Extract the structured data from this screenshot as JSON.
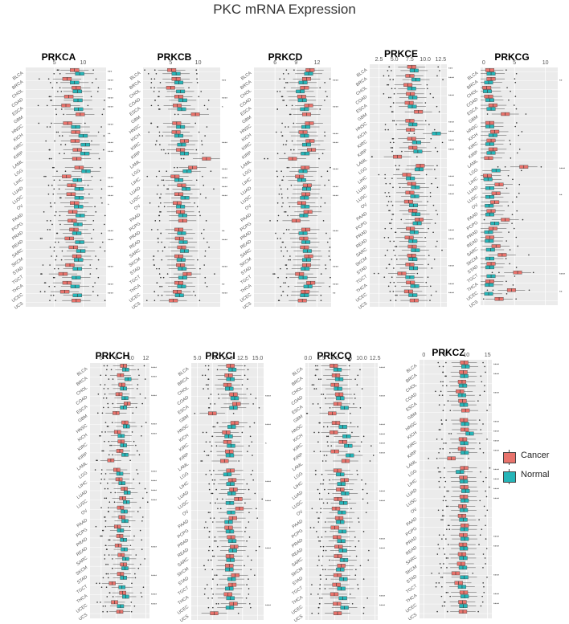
{
  "title": "PKC mRNA Expression",
  "colors": {
    "cancer": "#E8736C",
    "normal": "#26B5B8",
    "panel_bg": "#EBEBEB",
    "grid": "#FFFFFF"
  },
  "legend": {
    "cancer": "Cancer",
    "normal": "Normal"
  },
  "chart_data": [
    {
      "type": "box",
      "title": "PRKCA",
      "ticks": [
        {
          "v": 5,
          "label": "5"
        },
        {
          "v": 10,
          "label": "10"
        }
      ],
      "range": [
        0,
        14
      ],
      "categories": [
        "BLCA",
        "BRCA",
        "CHOL",
        "COAD",
        "ESCA",
        "GBM",
        "HNSC",
        "KICH",
        "KIRC",
        "KIRP",
        "LAML",
        "LGG",
        "LIHC",
        "LUAD",
        "LUSC",
        "OV",
        "PAAD",
        "PCPG",
        "PRAD",
        "READ",
        "SARC",
        "SKCM",
        "STAD",
        "TGCT",
        "THCA",
        "UCEC",
        "UCS"
      ],
      "cancer": [
        8.5,
        7.2,
        8.8,
        7.5,
        7.0,
        9.5,
        7.3,
        8.7,
        8.6,
        9.0,
        8.9,
        9.3,
        7.1,
        8.0,
        7.9,
        8.5,
        8.2,
        8.1,
        8.4,
        7.6,
        8.3,
        8.9,
        7.7,
        6.5,
        7.2,
        6.8,
        8.8
      ],
      "normal": [
        9.4,
        8.5,
        9.0,
        9.1,
        9.2,
        null,
        8.7,
        10.0,
        10.4,
        10.3,
        null,
        10.5,
        9.0,
        9.3,
        9.3,
        9.2,
        9.5,
        9.1,
        8.9,
        9.4,
        9.6,
        9.2,
        9.0,
        8.8,
        8.6,
        9.0,
        null
      ],
      "significance": [
        "***",
        "****",
        "***",
        "****",
        "****",
        "",
        "****",
        "**",
        "****",
        "****",
        "",
        "",
        "****",
        "****",
        "****",
        "*",
        "",
        "",
        "****",
        "****",
        "",
        "",
        "****",
        "",
        "****",
        "****",
        ""
      ]
    },
    {
      "type": "box",
      "title": "PRKCB",
      "ticks": [
        {
          "v": 5,
          "label": "5"
        },
        {
          "v": 10,
          "label": "10"
        }
      ],
      "range": [
        0,
        14
      ],
      "categories": [
        "BLCA",
        "BRCA",
        "CHOL",
        "COAD",
        "ESCA",
        "GBM",
        "HNSC",
        "KICH",
        "KIRC",
        "KIRP",
        "LAML",
        "LGG",
        "LIHC",
        "LUAD",
        "LUSC",
        "OV",
        "PAAD",
        "PCPG",
        "PRAD",
        "READ",
        "SARC",
        "SKCM",
        "STAD",
        "TGCT",
        "THCA",
        "UCEC",
        "UCS"
      ],
      "cancer": [
        5.2,
        6.0,
        5.0,
        6.5,
        6.2,
        9.5,
        6.1,
        6.0,
        7.5,
        6.8,
        11.5,
        9.0,
        5.8,
        7.0,
        6.5,
        6.2,
        6.8,
        7.2,
        6.5,
        6.6,
        7.0,
        6.5,
        6.8,
        8.0,
        6.5,
        6.2,
        5.5
      ],
      "normal": [
        6.0,
        6.5,
        6.8,
        7.2,
        7.0,
        null,
        6.8,
        6.5,
        7.0,
        7.5,
        null,
        8.0,
        6.5,
        7.8,
        7.6,
        6.8,
        7.2,
        null,
        7.0,
        7.3,
        7.5,
        6.9,
        7.1,
        7.2,
        7.0,
        6.6,
        null
      ],
      "significance": [
        "",
        "***",
        "",
        "****",
        "*",
        "",
        "",
        "",
        "****",
        "",
        "",
        "****",
        "****",
        "****",
        "****",
        "",
        "",
        "",
        "**",
        "****",
        "",
        "",
        "****",
        "",
        "**",
        "****",
        ""
      ]
    },
    {
      "type": "box",
      "title": "PRKCD",
      "ticks": [
        {
          "v": 6,
          "label": "6"
        },
        {
          "v": 9,
          "label": "9"
        },
        {
          "v": 12,
          "label": "12"
        }
      ],
      "range": [
        3,
        14
      ],
      "categories": [
        "BLCA",
        "BRCA",
        "CHOL",
        "COAD",
        "ESCA",
        "GBM",
        "HNSC",
        "KICH",
        "KIRC",
        "KIRP",
        "LAML",
        "LGG",
        "LIHC",
        "LUAD",
        "LUSC",
        "OV",
        "PAAD",
        "PCPG",
        "PRAD",
        "READ",
        "SARC",
        "SKCM",
        "STAD",
        "TGCT",
        "THCA",
        "UCEC",
        "UCS"
      ],
      "cancer": [
        11.0,
        10.5,
        10.2,
        9.8,
        10.8,
        10.5,
        10.9,
        10.0,
        11.0,
        11.2,
        8.5,
        10.3,
        9.5,
        10.6,
        10.4,
        9.8,
        10.7,
        9.0,
        10.4,
        10.1,
        10.2,
        10.8,
        10.5,
        9.5,
        11.1,
        10.3,
        9.9
      ],
      "normal": [
        10.8,
        10.0,
        9.6,
        9.9,
        10.2,
        null,
        10.4,
        10.2,
        10.5,
        10.3,
        null,
        10.0,
        9.8,
        10.5,
        10.2,
        10.3,
        10.1,
        null,
        10.0,
        10.4,
        10.6,
        10.5,
        10.3,
        10.0,
        10.7,
        10.2,
        null
      ],
      "significance": [
        "",
        "****",
        "",
        "",
        "****",
        "",
        "",
        "****",
        "****",
        "",
        "",
        "****",
        "",
        "****",
        "****",
        "",
        "",
        "",
        "****",
        "",
        "",
        "",
        "****",
        "",
        "****",
        "**",
        ""
      ]
    },
    {
      "type": "box",
      "title": "PRKCE",
      "ticks": [
        {
          "v": 2.5,
          "label": "2.5"
        },
        {
          "v": 5,
          "label": "5.0"
        },
        {
          "v": 7.5,
          "label": "7.5"
        },
        {
          "v": 10,
          "label": "10.0"
        },
        {
          "v": 12.5,
          "label": "12.5"
        }
      ],
      "range": [
        1,
        13.5
      ],
      "categories": [
        "BLCA",
        "BRCA",
        "CHOL",
        "COAD",
        "ESCA",
        "GBM",
        "HNSC",
        "KICH",
        "KIRC",
        "KIRP",
        "LAML",
        "LGG",
        "LIHC",
        "LUAD",
        "LUSC",
        "OV",
        "PAAD",
        "PCPG",
        "PRAD",
        "READ",
        "SARC",
        "SKCM",
        "STAD",
        "TGCT",
        "THCA",
        "UCEC",
        "UCS"
      ],
      "cancer": [
        7.8,
        7.5,
        7.2,
        7.6,
        7.4,
        8.9,
        7.5,
        7.6,
        7.8,
        8.0,
        5.5,
        9.2,
        7.0,
        7.8,
        7.5,
        7.3,
        8.0,
        9.0,
        7.6,
        7.4,
        7.9,
        7.8,
        7.5,
        6.2,
        7.6,
        7.3,
        8.2
      ],
      "normal": [
        8.2,
        8.5,
        7.8,
        8.0,
        7.9,
        null,
        8.0,
        11.8,
        8.6,
        8.8,
        null,
        9.0,
        7.6,
        8.4,
        8.3,
        8.1,
        8.5,
        8.7,
        8.2,
        8.0,
        8.4,
        8.0,
        8.1,
        7.5,
        8.3,
        8.0,
        null
      ],
      "significance": [
        "***",
        "****",
        "",
        "****",
        "",
        "",
        "****",
        "****",
        "****",
        "****",
        "",
        "",
        "****",
        "****",
        "****",
        "",
        "",
        "",
        "****",
        "****",
        "",
        "",
        "****",
        "",
        "****",
        "****",
        ""
      ]
    },
    {
      "type": "box",
      "title": "PRKCG",
      "ticks": [
        {
          "v": 0,
          "label": "0"
        },
        {
          "v": 5,
          "label": "5"
        },
        {
          "v": 10,
          "label": "10"
        }
      ],
      "range": [
        -0.5,
        12
      ],
      "categories": [
        "BLCA",
        "BRCA",
        "CHOL",
        "COAD",
        "ESCA",
        "GBM",
        "HNSC",
        "KICH",
        "KIRC",
        "KIRP",
        "LAML",
        "LGG",
        "LIHC",
        "LUAD",
        "LUSC",
        "OV",
        "PAAD",
        "PCPG",
        "PRAD",
        "READ",
        "SARC",
        "SKCM",
        "STAD",
        "TGCT",
        "THCA",
        "UCEC",
        "UCS"
      ],
      "cancer": [
        1.0,
        1.2,
        0.5,
        0.8,
        1.5,
        3.5,
        1.0,
        1.8,
        1.2,
        1.5,
        0.8,
        6.5,
        0.6,
        2.5,
        2.0,
        1.8,
        1.2,
        3.5,
        1.5,
        1.0,
        2.0,
        3.0,
        1.2,
        5.5,
        1.0,
        4.5,
        2.5
      ],
      "normal": [
        1.2,
        0.8,
        0.6,
        1.0,
        1.2,
        null,
        1.0,
        1.5,
        1.0,
        1.2,
        null,
        2.0,
        0.7,
        1.0,
        1.0,
        0.9,
        1.0,
        1.8,
        0.8,
        0.9,
        1.1,
        1.0,
        1.0,
        1.2,
        0.9,
        0.8,
        null
      ],
      "significance": [
        "",
        "**",
        "",
        "",
        "",
        "",
        "",
        "",
        "",
        "",
        "",
        "****",
        "",
        "",
        "**",
        "",
        "",
        "",
        "",
        "",
        "",
        "",
        "",
        "****",
        "",
        "**",
        ""
      ]
    },
    {
      "type": "box",
      "title": "PRKCH",
      "ticks": [
        {
          "v": 6,
          "label": "6"
        },
        {
          "v": 8,
          "label": "8"
        },
        {
          "v": 10,
          "label": "10"
        },
        {
          "v": 12,
          "label": "12"
        }
      ],
      "range": [
        4.5,
        12.5
      ],
      "categories": [
        "BLCA",
        "BRCA",
        "CHOL",
        "COAD",
        "ESCA",
        "GBM",
        "HNSC",
        "KICH",
        "KIRC",
        "KIRP",
        "LAML",
        "LGG",
        "LIHC",
        "LUAD",
        "LUSC",
        "OV",
        "PAAD",
        "PCPG",
        "PRAD",
        "READ",
        "SARC",
        "SKCM",
        "STAD",
        "TGCT",
        "THCA",
        "UCEC",
        "UCS"
      ],
      "cancer": [
        9.0,
        8.6,
        8.8,
        8.4,
        9.5,
        8.0,
        9.2,
        8.2,
        8.7,
        8.5,
        7.3,
        8.1,
        8.4,
        9.1,
        8.9,
        8.6,
        8.8,
        8.2,
        8.5,
        8.3,
        8.7,
        9.0,
        8.6,
        7.5,
        8.9,
        7.8,
        8.5
      ],
      "normal": [
        9.3,
        9.6,
        9.0,
        9.2,
        9.0,
        null,
        9.4,
        8.7,
        9.0,
        9.2,
        null,
        8.5,
        8.8,
        9.5,
        9.4,
        9.1,
        9.2,
        8.6,
        9.0,
        9.1,
        9.3,
        9.2,
        9.0,
        8.8,
        9.3,
        8.6,
        null
      ],
      "significance": [
        "****",
        "****",
        "",
        "****",
        "",
        "",
        "****",
        "****",
        "",
        "",
        "",
        "****",
        "****",
        "****",
        "****",
        "",
        "",
        "",
        "",
        "****",
        "",
        "",
        "****",
        "",
        "****",
        "****",
        ""
      ]
    },
    {
      "type": "box",
      "title": "PRKCI",
      "ticks": [
        {
          "v": 5,
          "label": "5.0"
        },
        {
          "v": 7.5,
          "label": "7.5"
        },
        {
          "v": 10,
          "label": "10.0"
        },
        {
          "v": 12.5,
          "label": "12.5"
        },
        {
          "v": 15,
          "label": "15.0"
        }
      ],
      "range": [
        4,
        16
      ],
      "categories": [
        "BLCA",
        "BRCA",
        "CHOL",
        "COAD",
        "ESCA",
        "GBM",
        "HNSC",
        "KICH",
        "KIRC",
        "KIRP",
        "LAML",
        "LGG",
        "LIHC",
        "LUAD",
        "LUSC",
        "OV",
        "PAAD",
        "PCPG",
        "PRAD",
        "READ",
        "SARC",
        "SKCM",
        "STAD",
        "TGCT",
        "THCA",
        "UCEC",
        "UCS"
      ],
      "cancer": [
        10.5,
        10.2,
        10.0,
        11.0,
        11.5,
        7.5,
        11.2,
        9.8,
        10.0,
        10.3,
        9.5,
        10.5,
        10.8,
        11.0,
        11.8,
        12.0,
        10.9,
        10.2,
        10.6,
        11.1,
        10.4,
        10.3,
        11.3,
        10.8,
        10.1,
        11.0,
        7.8
      ],
      "normal": [
        10.8,
        10.5,
        10.3,
        11.2,
        11.0,
        null,
        10.7,
        10.2,
        10.6,
        10.4,
        null,
        10.0,
        10.5,
        10.7,
        10.4,
        10.6,
        10.2,
        10.4,
        10.8,
        10.9,
        10.5,
        10.3,
        10.7,
        10.3,
        10.5,
        10.4,
        null
      ],
      "significance": [
        "",
        "",
        "",
        "****",
        "",
        "",
        "****",
        "",
        "*",
        "",
        "",
        "",
        "****",
        "",
        "****",
        "",
        "",
        "",
        "",
        "****",
        "",
        "",
        "",
        "",
        "",
        "****",
        ""
      ]
    },
    {
      "type": "box",
      "title": "PRKCQ",
      "ticks": [
        {
          "v": 0,
          "label": "0.0"
        },
        {
          "v": 2.5,
          "label": "2.5"
        },
        {
          "v": 5,
          "label": "5.0"
        },
        {
          "v": 7.5,
          "label": "7.5"
        },
        {
          "v": 10,
          "label": "10.0"
        },
        {
          "v": 12.5,
          "label": "12.5"
        }
      ],
      "range": [
        -0.5,
        13
      ],
      "categories": [
        "BLCA",
        "BRCA",
        "CHOL",
        "COAD",
        "ESCA",
        "GBM",
        "HNSC",
        "KICH",
        "KIRC",
        "KIRP",
        "LAML",
        "LGG",
        "LIHC",
        "LUAD",
        "LUSC",
        "OV",
        "PAAD",
        "PCPG",
        "PRAD",
        "READ",
        "SARC",
        "SKCM",
        "STAD",
        "TGCT",
        "THCA",
        "UCEC",
        "UCS"
      ],
      "cancer": [
        4.8,
        5.2,
        5.0,
        5.8,
        5.5,
        4.5,
        5.2,
        4.8,
        6.5,
        5.0,
        7.0,
        5.5,
        6.8,
        6.0,
        5.6,
        5.2,
        5.8,
        5.0,
        5.4,
        5.7,
        5.6,
        6.2,
        5.5,
        5.3,
        4.9,
        5.4,
        5.5
      ],
      "normal": [
        5.5,
        5.8,
        5.6,
        6.0,
        6.8,
        null,
        6.5,
        7.2,
        7.5,
        7.8,
        null,
        6.0,
        6.2,
        6.9,
        6.6,
        6.3,
        6.0,
        6.4,
        6.2,
        6.5,
        6.7,
        6.0,
        6.6,
        6.2,
        6.5,
        6.8,
        null
      ],
      "significance": [
        "****",
        "",
        "",
        "****",
        "",
        "",
        "****",
        "****",
        "****",
        "****",
        "",
        "",
        "",
        "****",
        "****",
        "",
        "",
        "",
        "****",
        "****",
        "",
        "",
        "",
        "",
        "****",
        "****",
        ""
      ]
    },
    {
      "type": "box",
      "title": "PRKCZ",
      "ticks": [
        {
          "v": 0,
          "label": "0"
        },
        {
          "v": 5,
          "label": "5"
        },
        {
          "v": 10,
          "label": "10"
        },
        {
          "v": 15,
          "label": "15"
        }
      ],
      "range": [
        -1,
        16
      ],
      "categories": [
        "BLCA",
        "BRCA",
        "CHOL",
        "COAD",
        "ESCA",
        "GBM",
        "HNSC",
        "KICH",
        "KIRC",
        "KIRP",
        "LAML",
        "LGG",
        "LIHC",
        "LUAD",
        "LUSC",
        "OV",
        "PAAD",
        "PCPG",
        "PRAD",
        "READ",
        "SARC",
        "SKCM",
        "STAD",
        "TGCT",
        "THCA",
        "UCEC",
        "UCS"
      ],
      "cancer": [
        9.5,
        9.3,
        9.0,
        8.5,
        9.1,
        9.8,
        9.4,
        9.6,
        9.2,
        9.0,
        6.5,
        9.5,
        9.3,
        9.5,
        9.4,
        9.1,
        9.0,
        9.6,
        9.3,
        9.2,
        9.0,
        8.8,
        7.5,
        8.2,
        9.4,
        9.1,
        9.2
      ],
      "normal": [
        9.8,
        9.5,
        9.2,
        9.0,
        9.4,
        null,
        9.7,
        10.8,
        9.5,
        9.6,
        null,
        8.5,
        9.4,
        9.8,
        9.6,
        9.4,
        9.3,
        9.5,
        9.6,
        9.4,
        9.3,
        9.2,
        9.5,
        9.0,
        9.6,
        9.3,
        null
      ],
      "significance": [
        "****",
        "****",
        "",
        "****",
        "",
        "",
        "****",
        "****",
        "****",
        "****",
        "",
        "****",
        "****",
        "****",
        "****",
        "",
        "",
        "",
        "****",
        "****",
        "",
        "",
        "****",
        "",
        "****",
        "****",
        ""
      ]
    }
  ]
}
